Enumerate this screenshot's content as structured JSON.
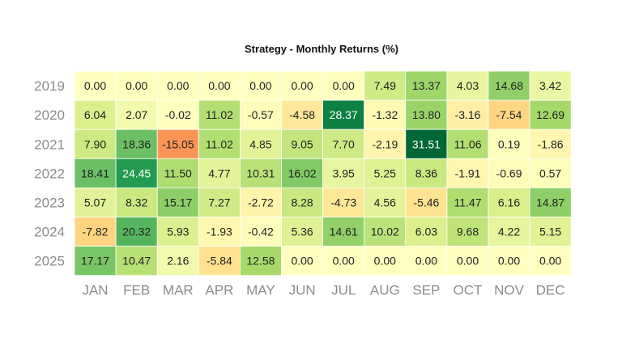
{
  "chart_data": {
    "type": "heatmap",
    "title": "Strategy - Monthly Returns (%)",
    "xlabel": "",
    "ylabel": "",
    "columns": [
      "JAN",
      "FEB",
      "MAR",
      "APR",
      "MAY",
      "JUN",
      "JUL",
      "AUG",
      "SEP",
      "OCT",
      "NOV",
      "DEC"
    ],
    "rows": [
      "2019",
      "2020",
      "2021",
      "2022",
      "2023",
      "2024",
      "2025"
    ],
    "values": [
      [
        0.0,
        0.0,
        0.0,
        0.0,
        0.0,
        0.0,
        0.0,
        7.49,
        13.37,
        4.03,
        14.68,
        3.42
      ],
      [
        6.04,
        2.07,
        -0.02,
        11.02,
        -0.57,
        -4.58,
        28.37,
        -1.32,
        13.8,
        -3.16,
        -7.54,
        12.69
      ],
      [
        7.9,
        18.36,
        -15.05,
        11.02,
        4.85,
        9.05,
        7.7,
        -2.19,
        31.51,
        11.06,
        0.19,
        -1.86
      ],
      [
        18.41,
        24.45,
        11.5,
        4.77,
        10.31,
        16.02,
        3.95,
        5.25,
        8.36,
        -1.91,
        -0.69,
        0.57
      ],
      [
        5.07,
        8.32,
        15.17,
        7.27,
        -2.72,
        8.28,
        -4.73,
        4.56,
        -5.46,
        11.47,
        6.16,
        14.87
      ],
      [
        -7.82,
        20.32,
        5.93,
        -1.93,
        -0.42,
        5.36,
        14.61,
        10.02,
        6.03,
        9.68,
        4.22,
        5.15
      ],
      [
        17.17,
        10.47,
        2.16,
        -5.84,
        12.58,
        0.0,
        0.0,
        0.0,
        0.0,
        0.0,
        0.0,
        0.0
      ]
    ],
    "colormap": "RdYlGn",
    "center": 0
  }
}
